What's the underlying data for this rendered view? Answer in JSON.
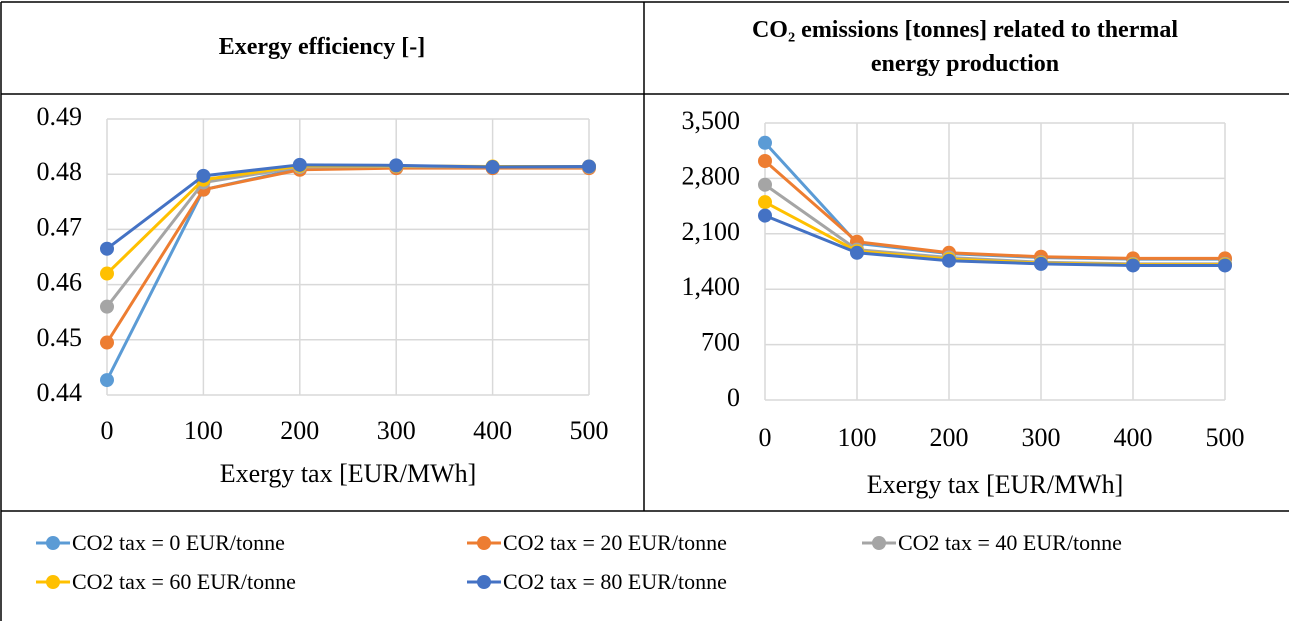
{
  "chart_data": [
    {
      "type": "line",
      "title": "Exergy efficiency [-]",
      "x_label": "Exergy tax [EUR/MWh]",
      "x": [
        0,
        100,
        200,
        300,
        400,
        500
      ],
      "xlim": [
        0,
        500
      ],
      "xticks": [
        0,
        100,
        200,
        300,
        400,
        500
      ],
      "ylim": [
        0.44,
        0.49
      ],
      "yticks": [
        0.44,
        0.45,
        0.46,
        0.47,
        0.48,
        0.49
      ],
      "grid": true,
      "series": [
        {
          "name": "CO2 tax = 0 EUR/tonne",
          "color": "#5b9bd5",
          "values": [
            0.4427,
            0.4772,
            0.481,
            0.4812,
            0.4812,
            0.4812
          ]
        },
        {
          "name": "CO2 tax = 20 EUR/tonne",
          "color": "#ed7d31",
          "values": [
            0.4495,
            0.4772,
            0.4808,
            0.4811,
            0.4811,
            0.4811
          ]
        },
        {
          "name": "CO2 tax = 40 EUR/tonne",
          "color": "#a5a5a5",
          "values": [
            0.456,
            0.4785,
            0.4813,
            0.4814,
            0.4813,
            0.4813
          ]
        },
        {
          "name": "CO2 tax = 60 EUR/tonne",
          "color": "#ffc000",
          "values": [
            0.462,
            0.479,
            0.4815,
            0.4815,
            0.4814,
            0.4814
          ]
        },
        {
          "name": "CO2 tax = 80 EUR/tonne",
          "color": "#4472c4",
          "values": [
            0.4665,
            0.4797,
            0.4817,
            0.4816,
            0.4813,
            0.4814
          ]
        }
      ]
    },
    {
      "type": "line",
      "title": "CO₂ emissions [tonnes] related to thermal energy production",
      "x_label": "Exergy tax [EUR/MWh]",
      "x": [
        0,
        100,
        200,
        300,
        400,
        500
      ],
      "xlim": [
        0,
        500
      ],
      "xticks": [
        0,
        100,
        200,
        300,
        400,
        500
      ],
      "ylim": [
        0,
        3500
      ],
      "yticks": [
        0,
        700,
        {
          "value": 1400,
          "label": "1,400"
        },
        {
          "value": 2100,
          "label": "2,100"
        },
        {
          "value": 2800,
          "label": "2,800"
        },
        {
          "value": 3500,
          "label": "3,500"
        }
      ],
      "grid": true,
      "series": [
        {
          "color": "#5b9bd5",
          "values": [
            3250,
            1980,
            1850,
            1800,
            1780,
            1780
          ]
        },
        {
          "color": "#ed7d31",
          "values": [
            3020,
            2000,
            1860,
            1810,
            1790,
            1790
          ]
        },
        {
          "color": "#a5a5a5",
          "values": [
            2720,
            1900,
            1800,
            1740,
            1720,
            1720
          ]
        },
        {
          "color": "#ffc000",
          "values": [
            2500,
            1880,
            1780,
            1730,
            1710,
            1710
          ]
        },
        {
          "color": "#4472c4",
          "values": [
            2330,
            1860,
            1760,
            1720,
            1700,
            1700
          ]
        }
      ]
    }
  ]
}
